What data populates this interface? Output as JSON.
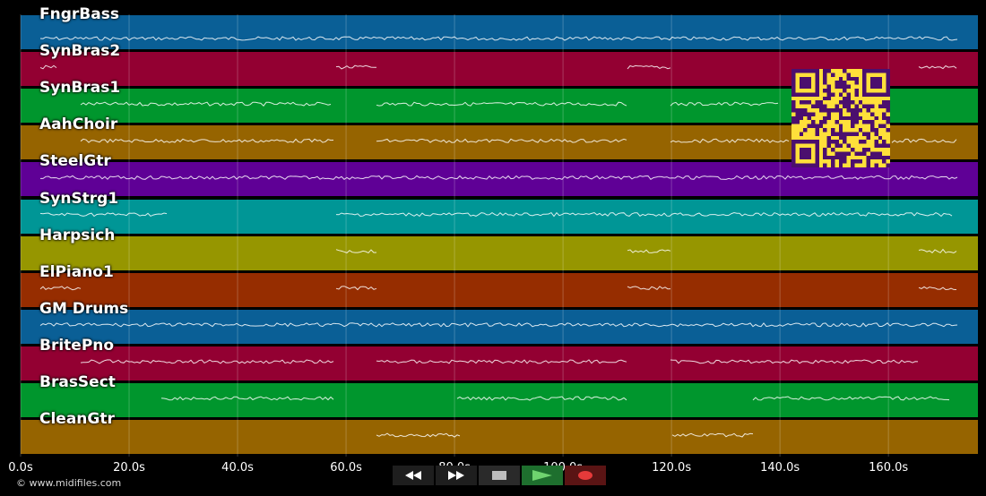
{
  "tracks": [
    {
      "name": "FngrBass",
      "color": "#0a5f96"
    },
    {
      "name": "SynBras2",
      "color": "#930032"
    },
    {
      "name": "SynBras1",
      "color": "#00962d"
    },
    {
      "name": "AahChoir",
      "color": "#966400"
    },
    {
      "name": "SteelGtr",
      "color": "#5f0096"
    },
    {
      "name": "SynStrg1",
      "color": "#009696"
    },
    {
      "name": "Harpsich",
      "color": "#969600"
    },
    {
      "name": "ElPiano1",
      "color": "#962d00"
    },
    {
      "name": "GM Drums",
      "color": "#0a5f96"
    },
    {
      "name": "BritePno",
      "color": "#930032"
    },
    {
      "name": "BrasSect",
      "color": "#00962d"
    },
    {
      "name": "CleanGtr",
      "color": "#966400"
    }
  ],
  "timeline": {
    "max_seconds": 176.5,
    "ticks": [
      "0.0s",
      "20.0s",
      "40.0s",
      "60.0s",
      "80.0s",
      "100.0s",
      "120.0s",
      "140.0s",
      "160.0s"
    ]
  },
  "credit": "© www.midifiles.com",
  "transport": {
    "rewind_icon": "rewind-icon",
    "fast_forward_icon": "fast-forward-icon",
    "stop_icon": "stop-icon",
    "play_icon": "play-icon",
    "record_icon": "record-icon",
    "colors": {
      "rewind": "#1e1e1e",
      "fast_forward": "#1e1e1e",
      "stop": "#2a2a2a",
      "play": "#1e6f2e",
      "record": "#5a1414"
    }
  },
  "qr_code": {
    "fg": "#4b0f6e",
    "bg": "#ffe03a"
  }
}
